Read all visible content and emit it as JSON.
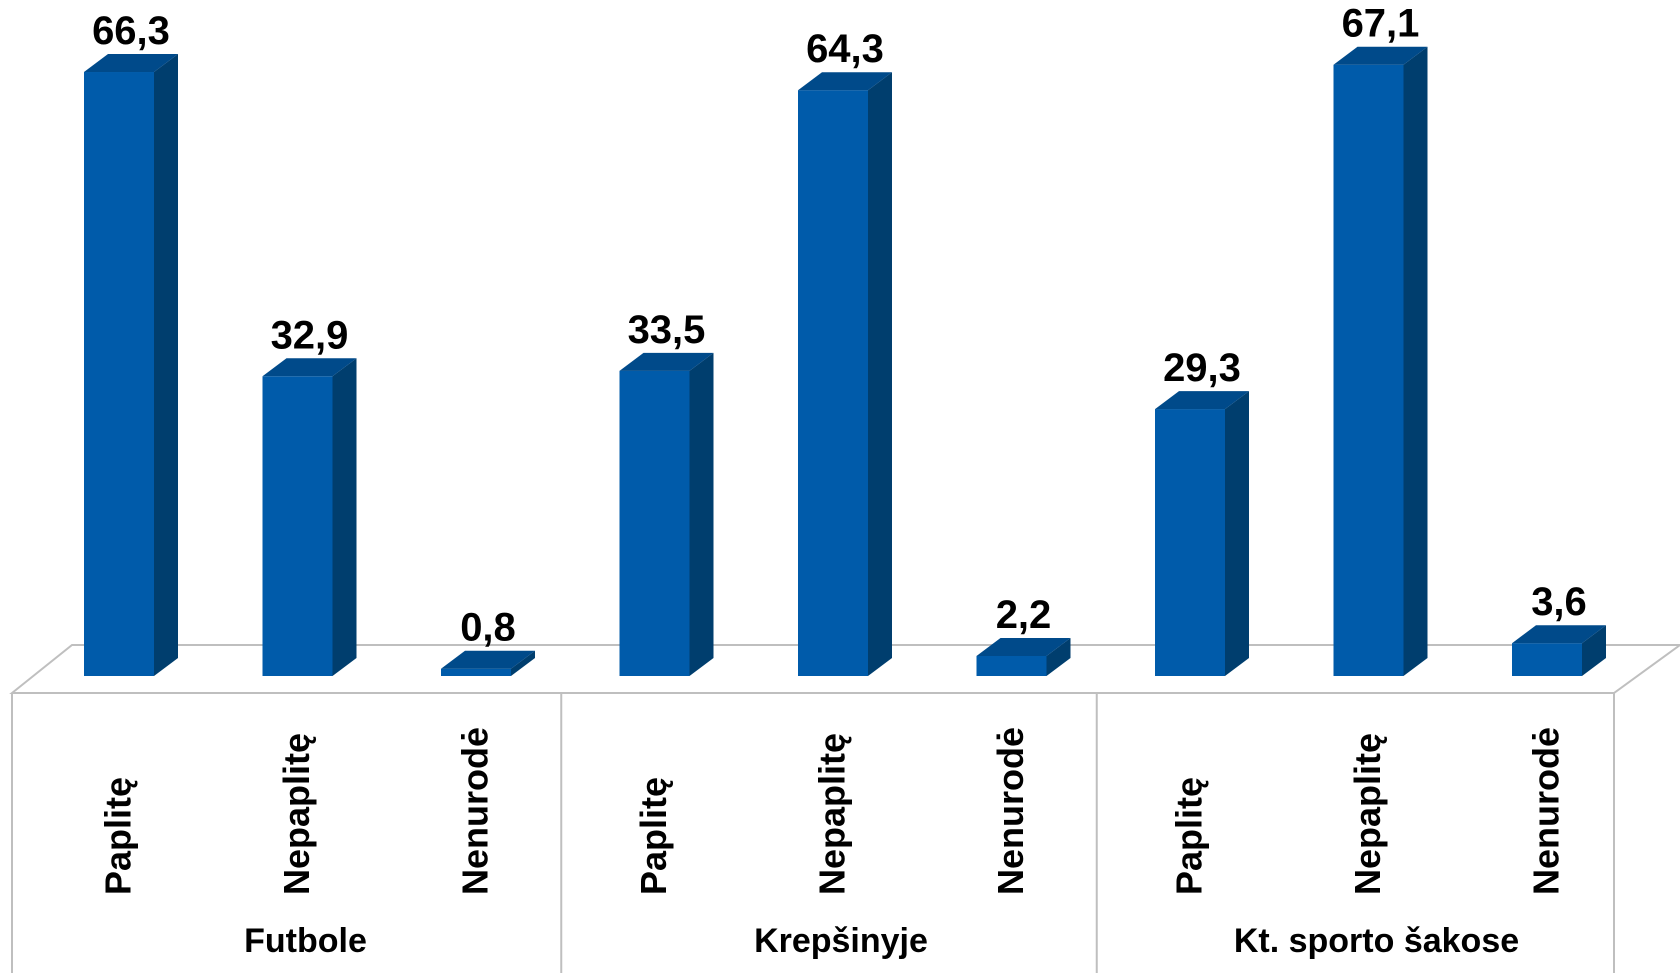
{
  "chart_data": {
    "type": "bar",
    "style": "3d-columns",
    "title": "",
    "xlabel": "",
    "ylabel": "",
    "ylim": [
      0,
      70
    ],
    "grid": false,
    "legend": "none",
    "colors": {
      "front": "#005BAA",
      "side": "#003E6E",
      "top": "#004A8A",
      "axis": "#BFBFBF"
    },
    "groups": [
      {
        "name": "Futbole",
        "categories": [
          "Paplitę",
          "Nepaplitę",
          "Nenurodė"
        ],
        "values": [
          66.3,
          32.9,
          0.8
        ],
        "labels": [
          "66,3",
          "32,9",
          "0,8"
        ]
      },
      {
        "name": "Krepšinyje",
        "categories": [
          "Paplitę",
          "Nepaplitę",
          "Nenurodė"
        ],
        "values": [
          33.5,
          64.3,
          2.2
        ],
        "labels": [
          "33,5",
          "64,3",
          "2,2"
        ]
      },
      {
        "name": "Kt. sporto šakose",
        "categories": [
          "Paplitę",
          "Nepaplitę",
          "Nenurodė"
        ],
        "values": [
          29.3,
          67.1,
          3.6
        ],
        "labels": [
          "29,3",
          "67,1",
          "3,6"
        ]
      }
    ]
  }
}
